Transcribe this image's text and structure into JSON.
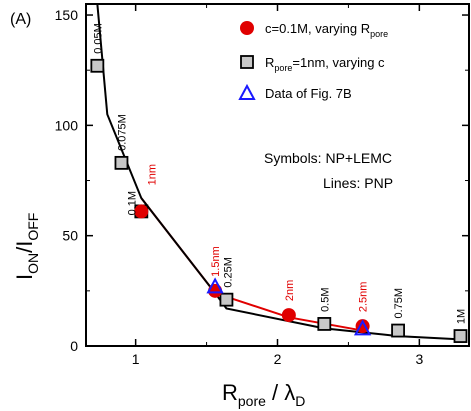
{
  "chart_data": {
    "type": "scatter",
    "panel_label": "(A)",
    "xlabel": {
      "main": "R",
      "sub": "pore",
      "post": " / λ",
      "sub2": "D"
    },
    "ylabel": {
      "main": "I",
      "sub": "ON",
      "mid": "/I",
      "sub2": "OFF"
    },
    "xlim": [
      0.65,
      3.35
    ],
    "ylim": [
      0,
      155
    ],
    "xticks": [
      1,
      2,
      3
    ],
    "yticks": [
      0,
      50,
      100,
      150
    ],
    "legend_position": "top-right",
    "legend": [
      {
        "marker": "red-circle",
        "text": "c=0.1M, varying R",
        "sub": "pore"
      },
      {
        "marker": "gray-square",
        "pre": "R",
        "sub": "pore",
        "text": "=1nm, varying c"
      },
      {
        "marker": "blue-triangle",
        "text": "Data of Fig. 7B"
      }
    ],
    "notes": [
      "Symbols: NP+LEMC",
      "Lines: PNP"
    ],
    "series": [
      {
        "name": "c=0.1M, varying R_pore",
        "marker": "red-circle",
        "x": [
          1.04,
          1.56,
          2.08,
          2.6
        ],
        "y": [
          61,
          25,
          14,
          9
        ],
        "labels": [
          "1nm",
          "1.5nm",
          "2nm",
          "2.5nm"
        ]
      },
      {
        "name": "R_pore=1nm, varying c",
        "marker": "gray-square",
        "x": [
          0.73,
          0.9,
          1.04,
          1.64,
          2.33,
          2.85,
          3.29
        ],
        "y": [
          127,
          83,
          61,
          21,
          10,
          7,
          4.5
        ],
        "labels": [
          "0.05M",
          "0.075M",
          "0.1M",
          "0.25M",
          "0.5M",
          "0.75M",
          "1M"
        ]
      },
      {
        "name": "Data of Fig. 7B",
        "marker": "blue-triangle",
        "x": [
          1.56,
          2.6
        ],
        "y": [
          27,
          8
        ],
        "labels": []
      },
      {
        "name": "PNP red line",
        "line": true,
        "color": "#e00000",
        "x": [
          1.04,
          1.56,
          2.08,
          2.6
        ],
        "y": [
          67,
          24,
          13,
          7
        ]
      },
      {
        "name": "PNP black line",
        "line": true,
        "color": "#000000",
        "x": [
          0.73,
          0.8,
          1.04,
          1.56,
          1.64,
          2.33,
          2.85,
          3.29
        ],
        "y": [
          155,
          105,
          67,
          24,
          17,
          8,
          4.5,
          3
        ]
      }
    ]
  }
}
